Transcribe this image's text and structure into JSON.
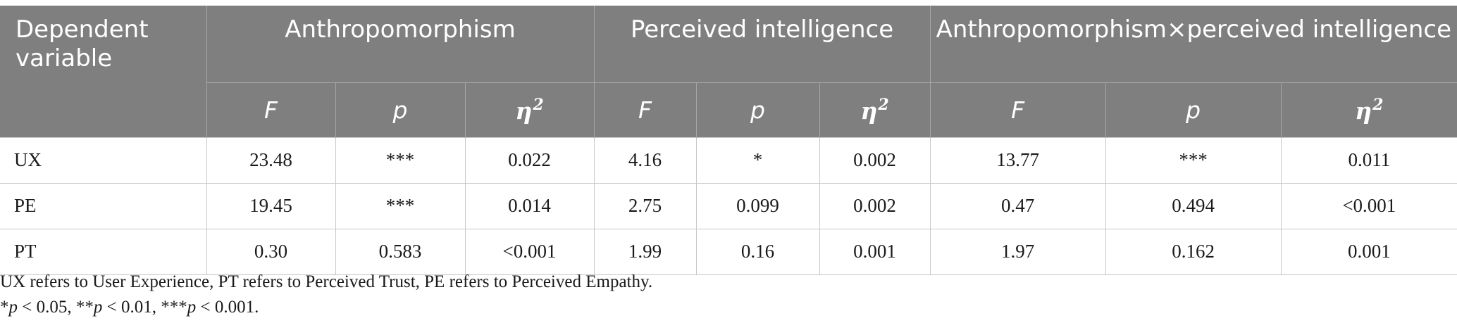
{
  "header": {
    "dependent_variable": "Dependent variable",
    "groups": [
      {
        "label": "Anthropomorphism"
      },
      {
        "label": "Perceived intelligence"
      },
      {
        "label": "Anthropomorphism×perceived intelligence"
      }
    ],
    "subheaders": [
      "F",
      "p",
      "η",
      "2"
    ]
  },
  "rows": [
    {
      "label": "UX",
      "cells": [
        "23.48",
        "***",
        "0.022",
        "4.16",
        "*",
        "0.002",
        "13.77",
        "***",
        "0.011"
      ]
    },
    {
      "label": "PE",
      "cells": [
        "19.45",
        "***",
        "0.014",
        "2.75",
        "0.099",
        "0.002",
        "0.47",
        "0.494",
        "<0.001"
      ]
    },
    {
      "label": "PT",
      "cells": [
        "0.30",
        "0.583",
        "<0.001",
        "1.99",
        "0.16",
        "0.001",
        "1.97",
        "0.162",
        "0.001"
      ]
    }
  ],
  "notes": {
    "line1": "UX refers to User Experience, PT refers to Perceived Trust, PE refers to Perceived Empathy.",
    "line2_parts": [
      "*",
      "p",
      " < 0.05, **",
      "p",
      " < 0.01, ***",
      "p",
      " < 0.001."
    ]
  }
}
